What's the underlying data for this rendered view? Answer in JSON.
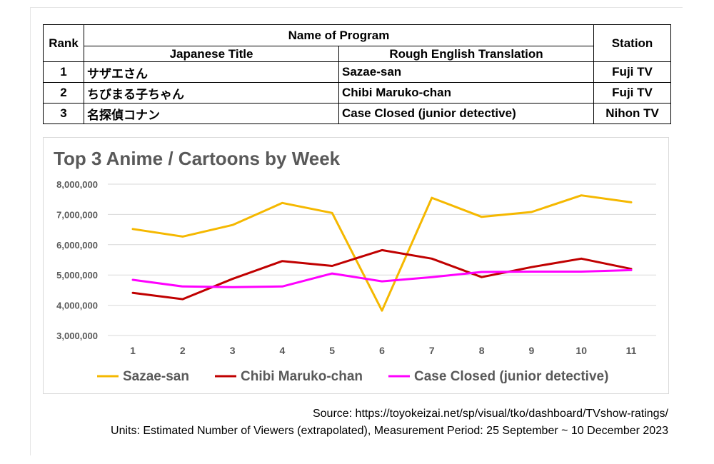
{
  "table": {
    "rank_header": "Rank",
    "program_header": "Name of Program",
    "japanese_header": "Japanese Title",
    "english_header": "Rough English Translation",
    "station_header": "Station",
    "rows": [
      {
        "rank": "1",
        "japanese": "サザエさん",
        "english": "Sazae-san",
        "station": "Fuji TV"
      },
      {
        "rank": "2",
        "japanese": "ちびまる子ちゃん",
        "english": "Chibi Maruko-chan",
        "station": "Fuji TV"
      },
      {
        "rank": "3",
        "japanese": "名探偵コナン",
        "english": "Case Closed (junior detective)",
        "station": "Nihon TV"
      }
    ]
  },
  "chart_data": {
    "type": "line",
    "title": "Top 3 Anime / Cartoons by Week",
    "xlabel": "",
    "ylabel": "",
    "x": [
      1,
      2,
      3,
      4,
      5,
      6,
      7,
      8,
      9,
      10,
      11
    ],
    "ylim": [
      3000000,
      8000000
    ],
    "yticks": [
      3000000,
      4000000,
      5000000,
      6000000,
      7000000,
      8000000
    ],
    "ytick_labels": [
      "3,000,000",
      "4,000,000",
      "5,000,000",
      "6,000,000",
      "7,000,000",
      "8,000,000"
    ],
    "grid": true,
    "legend_position": "bottom",
    "series": [
      {
        "name": "Sazae-san",
        "color": "#f5b800",
        "values": [
          6520000,
          6270000,
          6650000,
          7380000,
          7050000,
          3820000,
          7550000,
          6920000,
          7080000,
          7630000,
          7400000
        ]
      },
      {
        "name": "Chibi Maruko-chan",
        "color": "#c00000",
        "values": [
          4410000,
          4200000,
          4870000,
          5460000,
          5300000,
          5820000,
          5540000,
          4930000,
          5260000,
          5540000,
          5200000
        ]
      },
      {
        "name": "Case Closed (junior detective)",
        "color": "#ff00ff",
        "values": [
          4840000,
          4620000,
          4600000,
          4620000,
          5050000,
          4790000,
          4930000,
          5100000,
          5110000,
          5110000,
          5160000
        ]
      }
    ]
  },
  "footer": {
    "source": "Source:  https://toyokeizai.net/sp/visual/tko/dashboard/TVshow-ratings/",
    "units": "Units:  Estimated Number of Viewers (extrapolated), Measurement Period:  25 September ~ 10 December 2023"
  }
}
